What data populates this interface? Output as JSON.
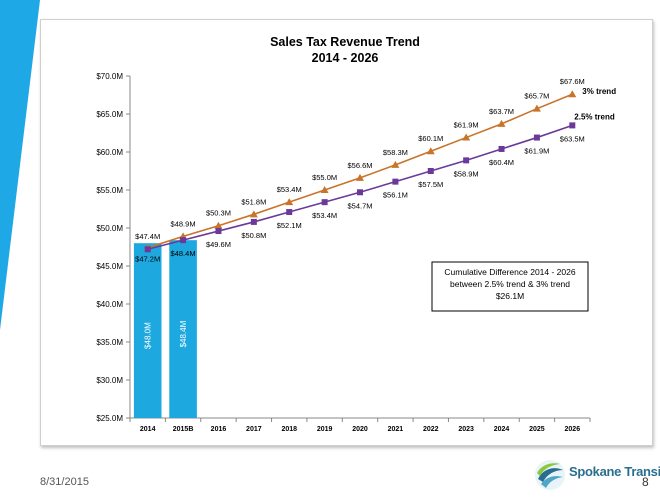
{
  "slide": {
    "date": "8/31/2015",
    "page_number": "8",
    "logo_text": "Spokane Transit"
  },
  "colors": {
    "bar": "#1ea8e0",
    "trend3": "#c8742a",
    "trend25": "#6a3a9a",
    "accent": "#1fa8e6"
  },
  "chart_data": {
    "type": "bar+line",
    "title": "Sales Tax Revenue Trend",
    "subtitle": "2014 - 2026",
    "categories": [
      "2014",
      "2015B",
      "2016",
      "2017",
      "2018",
      "2019",
      "2020",
      "2021",
      "2022",
      "2023",
      "2024",
      "2025",
      "2026"
    ],
    "y_ticks": [
      "$25.0M",
      "$30.0M",
      "$35.0M",
      "$40.0M",
      "$45.0M",
      "$50.0M",
      "$55.0M",
      "$60.0M",
      "$65.0M",
      "$70.0M"
    ],
    "ylim": [
      25,
      70
    ],
    "grid": false,
    "bars": {
      "values": [
        48.0,
        48.4
      ],
      "labels": [
        "$48.0M",
        "$48.4M"
      ]
    },
    "series": [
      {
        "name": "3% trend",
        "values": [
          47.4,
          48.9,
          50.3,
          51.8,
          53.4,
          55.0,
          56.6,
          58.3,
          60.1,
          61.9,
          63.7,
          65.7,
          67.6
        ],
        "labels": [
          "$47.4M",
          "$48.9M",
          "$50.3M",
          "$51.8M",
          "$53.4M",
          "$55.0M",
          "$56.6M",
          "$58.3M",
          "$60.1M",
          "$61.9M",
          "$63.7M",
          "$65.7M",
          "$67.6M"
        ],
        "marker": "triangle"
      },
      {
        "name": "2.5% trend",
        "values": [
          47.2,
          48.4,
          49.6,
          50.8,
          52.1,
          53.4,
          54.7,
          56.1,
          57.5,
          58.9,
          60.4,
          61.9,
          63.5
        ],
        "labels": [
          "$47.2M",
          "$48.4M",
          "$49.6M",
          "$50.8M",
          "$52.1M",
          "$53.4M",
          "$54.7M",
          "$56.1M",
          "$57.5M",
          "$58.9M",
          "$60.4M",
          "$61.9M",
          "$63.5M"
        ],
        "marker": "square"
      }
    ],
    "annotation": {
      "line1": "Cumulative Difference 2014 - 2026",
      "line2": "between 2.5% trend & 3% trend",
      "line3": "$26.1M"
    }
  }
}
